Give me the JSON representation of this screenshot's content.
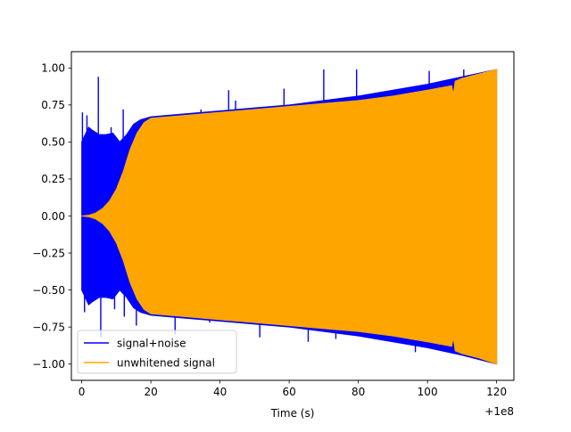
{
  "chart_data": {
    "type": "line",
    "xlabel": "Time (s)",
    "ylabel": "",
    "title": "",
    "x_offset_label": "+1e8",
    "xlim": [
      -3,
      125
    ],
    "ylim": [
      -1.11,
      1.11
    ],
    "x_ticks": [
      0,
      20,
      40,
      60,
      80,
      100,
      120
    ],
    "x_tick_labels": [
      "0",
      "20",
      "40",
      "60",
      "80",
      "100",
      "120"
    ],
    "y_ticks": [
      1.0,
      0.75,
      0.5,
      0.25,
      0.0,
      -0.25,
      -0.5,
      -0.75,
      -1.0
    ],
    "y_tick_labels": [
      "1.00",
      "0.75",
      "0.50",
      "0.25",
      "0.00",
      "−0.25",
      "−0.50",
      "−0.75",
      "−1.00"
    ],
    "grid": false,
    "legend_position": "bottom-left",
    "series": [
      {
        "name": "signal+noise",
        "color": "#0000ff",
        "envelope_x": [
          0,
          1,
          2,
          3,
          5,
          7,
          9,
          11,
          13,
          15,
          17,
          20,
          30,
          40,
          50,
          60,
          70,
          80,
          90,
          100,
          110,
          120
        ],
        "envelope_top": [
          0.5,
          0.55,
          0.6,
          0.58,
          0.55,
          0.55,
          0.56,
          0.5,
          0.55,
          0.62,
          0.65,
          0.67,
          0.69,
          0.71,
          0.73,
          0.75,
          0.78,
          0.81,
          0.85,
          0.89,
          0.94,
          0.99
        ],
        "envelope_bottom": [
          -0.5,
          -0.55,
          -0.6,
          -0.58,
          -0.55,
          -0.55,
          -0.56,
          -0.5,
          -0.55,
          -0.62,
          -0.65,
          -0.67,
          -0.69,
          -0.71,
          -0.73,
          -0.75,
          -0.78,
          -0.81,
          -0.85,
          -0.89,
          -0.94,
          -1.0
        ],
        "spikes_x": [
          0.2,
          0.8,
          1.5,
          4.8,
          5.5,
          8.5,
          9.5,
          12.0,
          12.3,
          15.8,
          27.0,
          34.5,
          37.0,
          42.5,
          44.5,
          51.5,
          58.5,
          65.5,
          70.0,
          73.5,
          79.5,
          96.5,
          100.5,
          101.5,
          110.5,
          113.5,
          116.5
        ],
        "spikes_y": [
          0.7,
          -0.65,
          0.68,
          0.94,
          -0.82,
          0.6,
          -0.63,
          0.72,
          -0.68,
          -0.74,
          -0.8,
          0.72,
          -0.72,
          0.85,
          0.78,
          -0.82,
          0.86,
          -0.85,
          0.99,
          -0.83,
          0.99,
          -0.92,
          0.98,
          0.8,
          0.99,
          0.95,
          0.95
        ]
      },
      {
        "name": "unwhitened signal",
        "color": "#ffa500",
        "envelope_x": [
          0,
          2,
          4,
          6,
          8,
          10,
          12,
          14,
          16,
          18,
          20,
          25,
          30,
          40,
          50,
          60,
          70,
          80,
          90,
          100,
          107,
          107.5,
          108,
          110,
          115,
          120
        ],
        "envelope_top": [
          0.0,
          0.005,
          0.02,
          0.05,
          0.1,
          0.18,
          0.3,
          0.45,
          0.56,
          0.63,
          0.66,
          0.67,
          0.68,
          0.7,
          0.72,
          0.74,
          0.76,
          0.78,
          0.81,
          0.85,
          0.88,
          0.82,
          0.91,
          0.93,
          0.96,
          0.99
        ],
        "envelope_bottom": [
          0.0,
          -0.005,
          -0.02,
          -0.05,
          -0.1,
          -0.18,
          -0.3,
          -0.45,
          -0.56,
          -0.63,
          -0.66,
          -0.67,
          -0.68,
          -0.7,
          -0.72,
          -0.74,
          -0.76,
          -0.78,
          -0.81,
          -0.85,
          -0.88,
          -0.82,
          -0.91,
          -0.93,
          -0.96,
          -1.0
        ]
      }
    ]
  }
}
